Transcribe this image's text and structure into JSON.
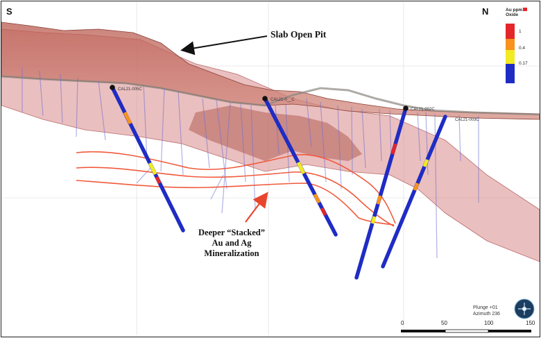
{
  "compass": {
    "south": "S",
    "north": "N"
  },
  "legend": {
    "title": "Au ppm\nOxide",
    "title_line1": "Au ppm",
    "title_line2": "Oxide",
    "classes": [
      {
        "label": "1",
        "color": "#e3262a"
      },
      {
        "label": "0.4",
        "color": "#f7931e"
      },
      {
        "label": "0.17",
        "color": "#f2ea22"
      },
      {
        "label": "",
        "color": "#1f2cc4"
      }
    ]
  },
  "annotations": {
    "pit": "Slab Open Pit",
    "deeper_line1": "Deeper “Stacked”",
    "deeper_line2": "Au and Ag",
    "deeper_line3": "Mineralization"
  },
  "drillholes": [
    {
      "label": "CAL21-005C"
    },
    {
      "label": "CAL21-0__C"
    },
    {
      "label": "CAL21-002C"
    },
    {
      "label": "CAL21-003C"
    }
  ],
  "view": {
    "plunge": "Plunge +01",
    "azimuth": "Azimuth 236"
  },
  "scale_bar": {
    "ticks": [
      "0",
      "50",
      "100",
      "150"
    ]
  },
  "colors": {
    "pit_model": "#d98a8a",
    "hole_blue": "#1f2cc4",
    "vein_line": "#f05a3c",
    "arrow_red": "#e8452e"
  }
}
